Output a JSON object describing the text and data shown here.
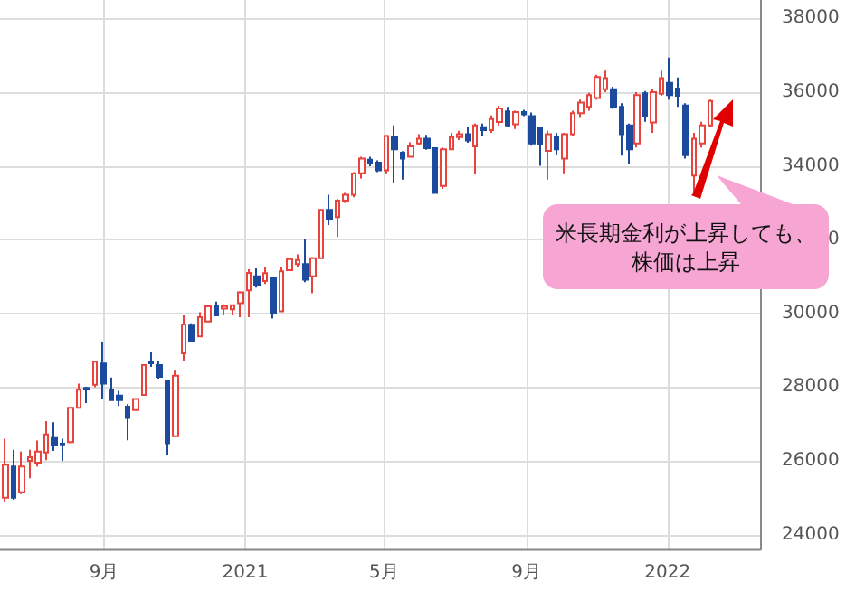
{
  "chart_data": {
    "type": "candlestick",
    "x": [
      "2020-06-08",
      "2020-06-15",
      "2020-06-22",
      "2020-06-29",
      "2020-07-06",
      "2020-07-13",
      "2020-07-20",
      "2020-07-27",
      "2020-08-03",
      "2020-08-10",
      "2020-08-17",
      "2020-08-24",
      "2020-08-31",
      "2020-09-07",
      "2020-09-14",
      "2020-09-21",
      "2020-09-28",
      "2020-10-05",
      "2020-10-12",
      "2020-10-19",
      "2020-10-26",
      "2020-11-02",
      "2020-11-09",
      "2020-11-16",
      "2020-11-23",
      "2020-11-30",
      "2020-12-07",
      "2020-12-14",
      "2020-12-21",
      "2020-12-28",
      "2021-01-04",
      "2021-01-11",
      "2021-01-18",
      "2021-01-25",
      "2021-02-01",
      "2021-02-08",
      "2021-02-15",
      "2021-02-22",
      "2021-03-01",
      "2021-03-08",
      "2021-03-15",
      "2021-03-22",
      "2021-03-29",
      "2021-04-05",
      "2021-04-12",
      "2021-04-19",
      "2021-04-26",
      "2021-05-03",
      "2021-05-10",
      "2021-05-17",
      "2021-05-24",
      "2021-05-31",
      "2021-06-07",
      "2021-06-14",
      "2021-06-21",
      "2021-06-28",
      "2021-07-05",
      "2021-07-12",
      "2021-07-19",
      "2021-07-26",
      "2021-08-02",
      "2021-08-09",
      "2021-08-16",
      "2021-08-23",
      "2021-08-30",
      "2021-09-06",
      "2021-09-13",
      "2021-09-20",
      "2021-09-27",
      "2021-10-04",
      "2021-10-11",
      "2021-10-18",
      "2021-10-25",
      "2021-11-01",
      "2021-11-08",
      "2021-11-15",
      "2021-11-22",
      "2021-11-29",
      "2021-12-06",
      "2021-12-13",
      "2021-12-20",
      "2021-12-27",
      "2022-01-03",
      "2022-01-10",
      "2022-01-17",
      "2022-01-24",
      "2022-01-31",
      "2022-02-07"
    ],
    "ohlc": [
      [
        25000,
        26600,
        24900,
        25900
      ],
      [
        25850,
        26300,
        24950,
        25000
      ],
      [
        25150,
        26250,
        25100,
        25850
      ],
      [
        26000,
        26300,
        25530,
        26100
      ],
      [
        25950,
        26550,
        25850,
        26250
      ],
      [
        26230,
        27080,
        26020,
        26720
      ],
      [
        26620,
        27050,
        26270,
        26430
      ],
      [
        26470,
        26600,
        26000,
        26450
      ],
      [
        26510,
        27450,
        26480,
        27440
      ],
      [
        27440,
        28100,
        27440,
        27930
      ],
      [
        27980,
        28010,
        27570,
        27940
      ],
      [
        28065,
        28720,
        28000,
        28690
      ],
      [
        28640,
        29210,
        27690,
        28100
      ],
      [
        27930,
        28260,
        27650,
        27650
      ],
      [
        27770,
        27900,
        27490,
        27650
      ],
      [
        27475,
        27540,
        26560,
        27165
      ],
      [
        27380,
        27700,
        27370,
        27680
      ],
      [
        27790,
        28620,
        27790,
        28600
      ],
      [
        28680,
        28965,
        28550,
        28650
      ],
      [
        28600,
        28720,
        28230,
        28280
      ],
      [
        28180,
        28200,
        26150,
        26480
      ],
      [
        26670,
        28470,
        26670,
        28310
      ],
      [
        28920,
        29950,
        28700,
        29700
      ],
      [
        29670,
        29730,
        29240,
        29240
      ],
      [
        29375,
        30030,
        29375,
        29900
      ],
      [
        29780,
        30200,
        29780,
        30190
      ],
      [
        30190,
        30320,
        29950,
        29950
      ],
      [
        30130,
        30250,
        29950,
        30200
      ],
      [
        30110,
        30250,
        29950,
        30220
      ],
      [
        30275,
        30600,
        29900,
        30570
      ],
      [
        30630,
        31200,
        29900,
        31100
      ],
      [
        31010,
        31220,
        30700,
        30760
      ],
      [
        30880,
        31260,
        30800,
        31090
      ],
      [
        30960,
        31000,
        29860,
        29995
      ],
      [
        30060,
        31260,
        30060,
        31140
      ],
      [
        31175,
        31500,
        31150,
        31470
      ],
      [
        31340,
        31600,
        31260,
        31450
      ],
      [
        31340,
        32025,
        30850,
        30915
      ],
      [
        31010,
        31530,
        30550,
        31500
      ],
      [
        31500,
        32810,
        31500,
        32810
      ],
      [
        32810,
        33220,
        32400,
        32565
      ],
      [
        32615,
        33100,
        32075,
        33060
      ],
      [
        33060,
        33270,
        33000,
        33220
      ],
      [
        33220,
        33830,
        33150,
        33795
      ],
      [
        33800,
        34250,
        33660,
        34200
      ],
      [
        34170,
        34250,
        33990,
        34090
      ],
      [
        34090,
        34150,
        33830,
        33880
      ],
      [
        33880,
        34840,
        33800,
        34810
      ],
      [
        34780,
        35100,
        33550,
        34450
      ],
      [
        34360,
        34400,
        33630,
        34200
      ],
      [
        34250,
        34640,
        34250,
        34530
      ],
      [
        34610,
        34860,
        34560,
        34740
      ],
      [
        34740,
        34840,
        34440,
        34480
      ],
      [
        34480,
        34500,
        33270,
        33270
      ],
      [
        33460,
        34500,
        33380,
        34450
      ],
      [
        34450,
        34900,
        34450,
        34780
      ],
      [
        34780,
        34950,
        34700,
        34860
      ],
      [
        34860,
        35070,
        34630,
        34690
      ],
      [
        34530,
        35150,
        33790,
        35100
      ],
      [
        35050,
        35150,
        34800,
        34970
      ],
      [
        34970,
        35370,
        34900,
        35270
      ],
      [
        35190,
        35630,
        35100,
        35560
      ],
      [
        35480,
        35600,
        35050,
        35100
      ],
      [
        35130,
        35500,
        35000,
        35460
      ],
      [
        35460,
        35520,
        35350,
        35400
      ],
      [
        35350,
        35450,
        34550,
        34610
      ],
      [
        35020,
        35050,
        34000,
        34580
      ],
      [
        34410,
        34950,
        33630,
        34860
      ],
      [
        34800,
        34900,
        34300,
        34450
      ],
      [
        34200,
        34900,
        33800,
        34860
      ],
      [
        34860,
        35500,
        34800,
        35430
      ],
      [
        35430,
        35800,
        35300,
        35720
      ],
      [
        35600,
        35980,
        35500,
        35920
      ],
      [
        35840,
        36470,
        35800,
        36410
      ],
      [
        36080,
        36580,
        36000,
        36380
      ],
      [
        36080,
        36150,
        35550,
        35600
      ],
      [
        35600,
        35700,
        34280,
        34860
      ],
      [
        35100,
        35150,
        34040,
        34450
      ],
      [
        34610,
        36000,
        34500,
        35920
      ],
      [
        35970,
        36030,
        35200,
        35350
      ],
      [
        35180,
        36100,
        34900,
        36000
      ],
      [
        35960,
        36580,
        35900,
        36380
      ],
      [
        36250,
        36940,
        35800,
        35920
      ],
      [
        36100,
        36400,
        35600,
        35900
      ],
      [
        35640,
        35700,
        34200,
        34290
      ],
      [
        33740,
        34900,
        33220,
        34740
      ],
      [
        34610,
        35200,
        34500,
        35100
      ],
      [
        35100,
        35800,
        35050,
        35760
      ]
    ],
    "colors": [
      "#e8433d",
      "#1c4a9c",
      "#e8433d",
      "#e8433d",
      "#e8433d",
      "#e8433d",
      "#1c4a9c",
      "#1c4a9c",
      "#e8433d",
      "#e8433d",
      "#1c4a9c",
      "#e8433d",
      "#1c4a9c",
      "#1c4a9c",
      "#1c4a9c",
      "#1c4a9c",
      "#e8433d",
      "#e8433d",
      "#1c4a9c",
      "#1c4a9c",
      "#1c4a9c",
      "#e8433d",
      "#e8433d",
      "#1c4a9c",
      "#e8433d",
      "#e8433d",
      "#1c4a9c",
      "#e8433d",
      "#e8433d",
      "#e8433d",
      "#e8433d",
      "#1c4a9c",
      "#e8433d",
      "#1c4a9c",
      "#e8433d",
      "#e8433d",
      "#e8433d",
      "#1c4a9c",
      "#e8433d",
      "#e8433d",
      "#1c4a9c",
      "#e8433d",
      "#e8433d",
      "#e8433d",
      "#e8433d",
      "#1c4a9c",
      "#1c4a9c",
      "#e8433d",
      "#1c4a9c",
      "#1c4a9c",
      "#e8433d",
      "#e8433d",
      "#1c4a9c",
      "#1c4a9c",
      "#e8433d",
      "#e8433d",
      "#e8433d",
      "#1c4a9c",
      "#e8433d",
      "#1c4a9c",
      "#e8433d",
      "#e8433d",
      "#1c4a9c",
      "#e8433d",
      "#1c4a9c",
      "#1c4a9c",
      "#1c4a9c",
      "#e8433d",
      "#1c4a9c",
      "#e8433d",
      "#e8433d",
      "#e8433d",
      "#e8433d",
      "#e8433d",
      "#e8433d",
      "#1c4a9c",
      "#1c4a9c",
      "#1c4a9c",
      "#e8433d",
      "#1c4a9c",
      "#e8433d",
      "#e8433d",
      "#1c4a9c",
      "#1c4a9c",
      "#1c4a9c",
      "#e8433d",
      "#e8433d",
      "#e8433d"
    ],
    "xlim": [
      "2020-06-03",
      "2022-03-22"
    ],
    "xticks": [
      {
        "value": "2020-09-01",
        "label": "9月"
      },
      {
        "value": "2021-01-01",
        "label": "2021"
      },
      {
        "value": "2021-05-01",
        "label": "5月"
      },
      {
        "value": "2021-09-01",
        "label": "9月"
      },
      {
        "value": "2022-01-01",
        "label": "2022"
      }
    ],
    "ylim": [
      23600,
      38500
    ],
    "yticks": [
      24000,
      26000,
      28000,
      30000,
      32000,
      34000,
      36000,
      38000
    ],
    "grid": true,
    "annotations": [
      "米長期金利が上昇しても、株価は上昇"
    ]
  }
}
